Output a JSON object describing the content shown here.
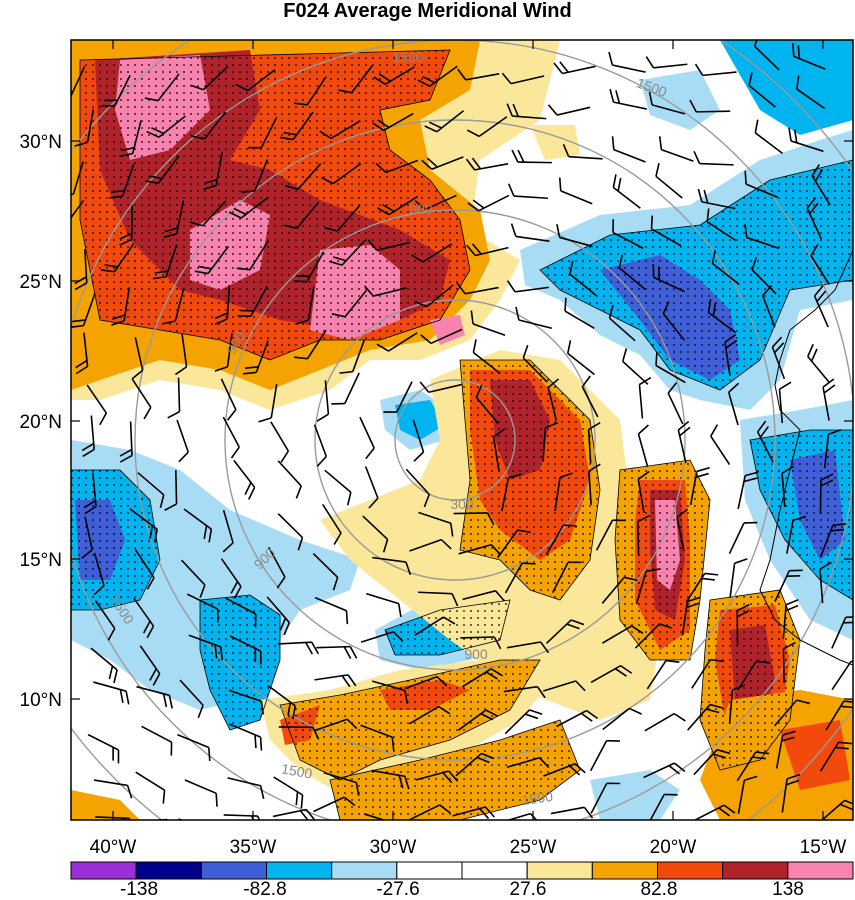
{
  "title": "F024 Average Meridional Wind",
  "map": {
    "lat_ticks": [
      "30°N",
      "25°N",
      "20°N",
      "15°N",
      "10°N"
    ],
    "lon_ticks": [
      "40°W",
      "35°W",
      "30°W",
      "25°W",
      "20°W",
      "15°W"
    ],
    "range_contour_labels": [
      "300",
      "900",
      "900",
      "900",
      "900",
      "1500",
      "1500",
      "1500",
      "1500",
      "1500"
    ],
    "storm_center": {
      "lat": 20.0,
      "lon": -28.5
    }
  },
  "colorbar": {
    "labels": [
      "-138",
      "-82.8",
      "-27.6",
      "27.6",
      "82.8",
      "138"
    ],
    "colors": [
      "#9b30d8",
      "#00008b",
      "#3f5fd8",
      "#00b4f0",
      "#a8dcf5",
      "#ffffff",
      "#ffffff",
      "#fbe79a",
      "#f5a300",
      "#f24a0c",
      "#b0232a",
      "#f783ae"
    ]
  },
  "colors": {
    "neg_strong": "#3f5fd8",
    "neg_mid": "#00b4f0",
    "neg_weak": "#a8dcf5",
    "pos_weak": "#fbe79a",
    "pos_mid": "#f5a300",
    "pos_strong": "#f24a0c",
    "pos_very": "#b0232a",
    "pos_max": "#f783ae"
  }
}
